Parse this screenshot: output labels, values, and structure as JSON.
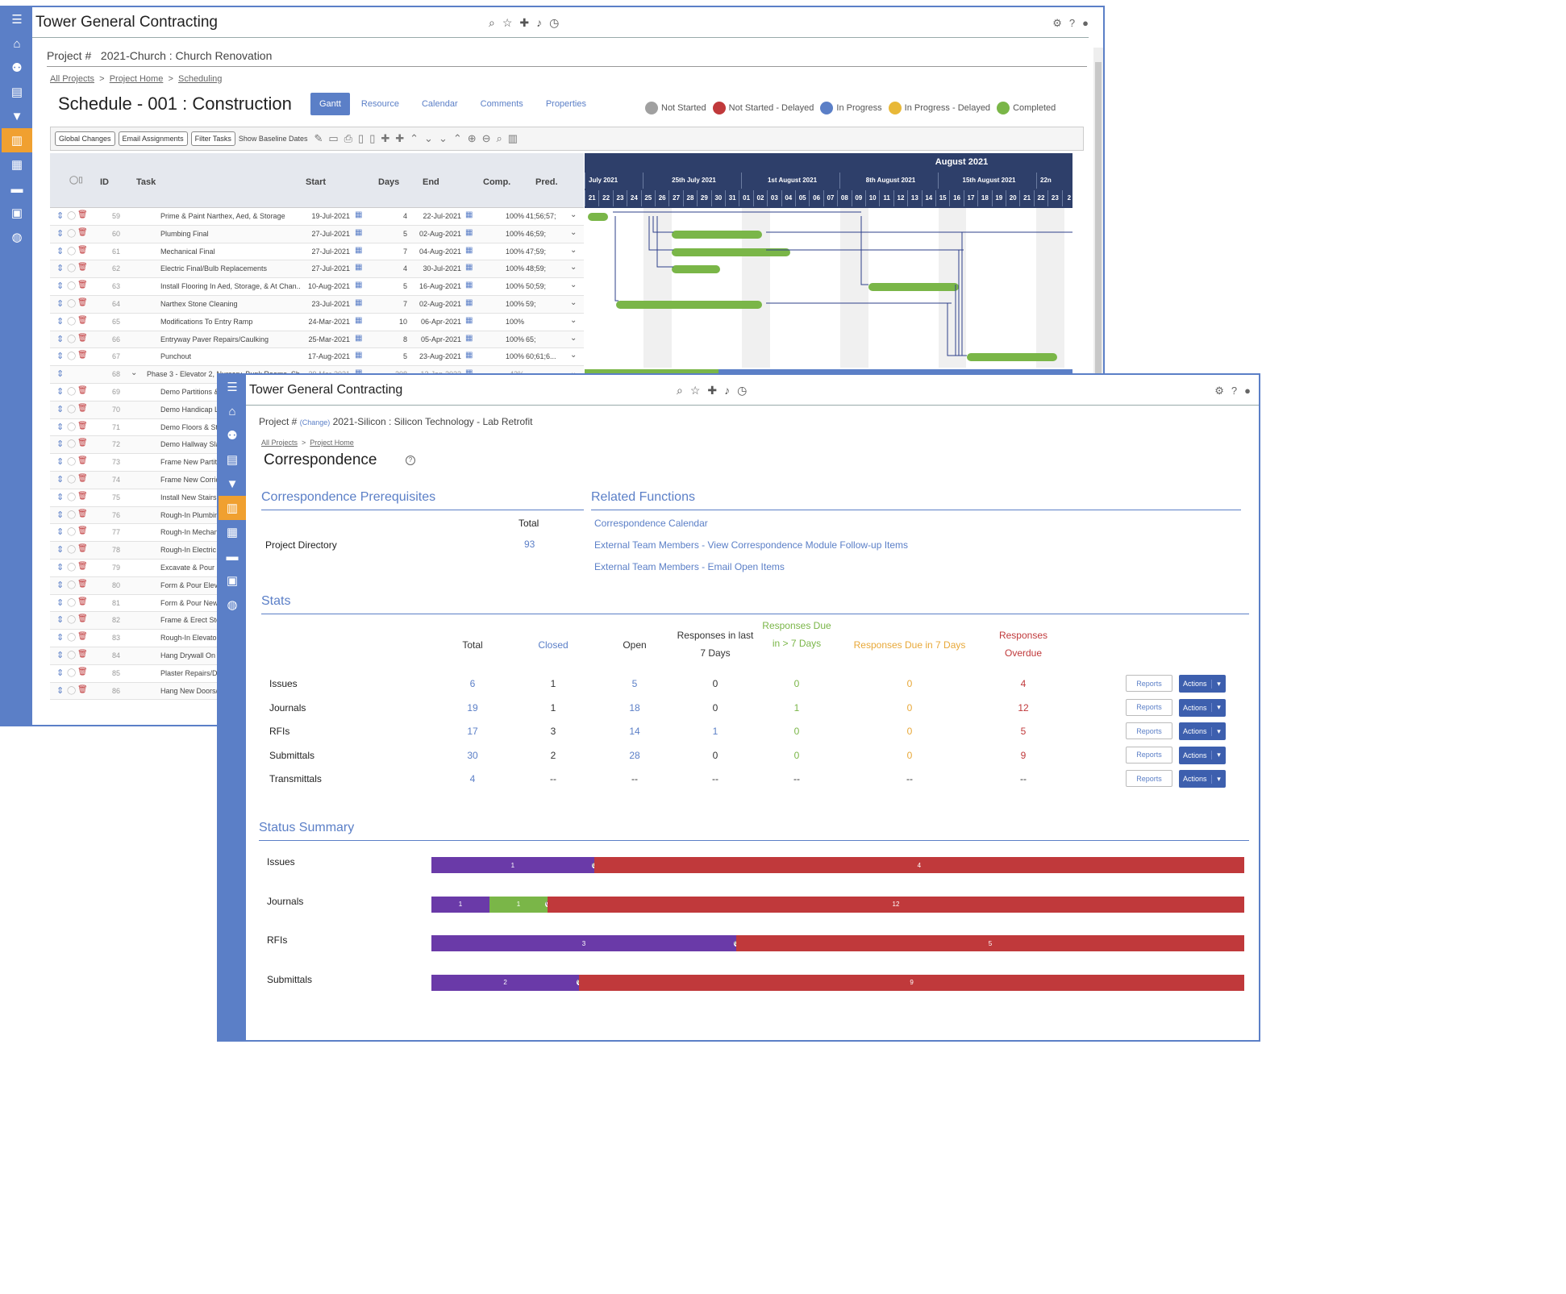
{
  "back": {
    "brand": "Tower General Contracting",
    "project_label": "Project #",
    "project": "2021-Church : Church Renovation",
    "crumbs": [
      "All Projects",
      "Project Home",
      "Scheduling"
    ],
    "title": "Schedule - 001 : Construction",
    "tabs": [
      "Gantt",
      "Resource",
      "Calendar",
      "Comments",
      "Properties"
    ],
    "legend": [
      {
        "label": "Not Started",
        "color": "#a0a0a0"
      },
      {
        "label": "Not Started - Delayed",
        "color": "#c0393b"
      },
      {
        "label": "In Progress",
        "color": "#5b7fc7"
      },
      {
        "label": "In Progress - Delayed",
        "color": "#e8b838"
      },
      {
        "label": "Completed",
        "color": "#7ab648"
      }
    ],
    "toolbar_buttons": [
      "Global Changes",
      "Email Assignments",
      "Filter Tasks"
    ],
    "toolbar_text": "Show Baseline Dates",
    "columns": [
      "ID",
      "Task",
      "Start",
      "Days",
      "End",
      "Comp.",
      "Pred."
    ],
    "month": "August 2021",
    "weeks": [
      "July 2021",
      "25th July 2021",
      "1st August 2021",
      "8th August 2021",
      "15th August 2021",
      "22n"
    ],
    "days": [
      "21",
      "22",
      "23",
      "24",
      "25",
      "26",
      "27",
      "28",
      "29",
      "30",
      "31",
      "01",
      "02",
      "03",
      "04",
      "05",
      "06",
      "07",
      "08",
      "09",
      "10",
      "11",
      "12",
      "13",
      "14",
      "15",
      "16",
      "17",
      "18",
      "19",
      "20",
      "21",
      "22",
      "23",
      "2"
    ],
    "rows": [
      {
        "id": "59",
        "task": "Prime & Paint Narthex, Aed, & Storage",
        "start": "19-Jul-2021",
        "days": "4",
        "end": "22-Jul-2021",
        "comp": "100%",
        "pred": "41;56;57;"
      },
      {
        "id": "60",
        "task": "Plumbing Final",
        "start": "27-Jul-2021",
        "days": "5",
        "end": "02-Aug-2021",
        "comp": "100%",
        "pred": "46;59;"
      },
      {
        "id": "61",
        "task": "Mechanical Final",
        "start": "27-Jul-2021",
        "days": "7",
        "end": "04-Aug-2021",
        "comp": "100%",
        "pred": "47;59;"
      },
      {
        "id": "62",
        "task": "Electric Final/Bulb Replacements",
        "start": "27-Jul-2021",
        "days": "4",
        "end": "30-Jul-2021",
        "comp": "100%",
        "pred": "48;59;"
      },
      {
        "id": "63",
        "task": "Install Flooring In Aed, Storage, & At Chan...",
        "start": "10-Aug-2021",
        "days": "5",
        "end": "16-Aug-2021",
        "comp": "100%",
        "pred": "50;59;"
      },
      {
        "id": "64",
        "task": "Narthex Stone Cleaning",
        "start": "23-Jul-2021",
        "days": "7",
        "end": "02-Aug-2021",
        "comp": "100%",
        "pred": "59;"
      },
      {
        "id": "65",
        "task": "Modifications To Entry Ramp",
        "start": "24-Mar-2021",
        "days": "10",
        "end": "06-Apr-2021",
        "comp": "100%",
        "pred": ""
      },
      {
        "id": "66",
        "task": "Entryway Paver Repairs/Caulking",
        "start": "25-Mar-2021",
        "days": "8",
        "end": "05-Apr-2021",
        "comp": "100%",
        "pred": "65;"
      },
      {
        "id": "67",
        "task": "Punchout",
        "start": "17-Aug-2021",
        "days": "5",
        "end": "23-Aug-2021",
        "comp": "100%",
        "pred": "60;61;6..."
      },
      {
        "id": "68",
        "task": "Phase 3 - Elevator 2, Nursery, Bunk Rooms, Sh...",
        "start": "29-Mar-2021",
        "days": "208",
        "end": "12-Jan-2022",
        "comp": "43%",
        "pred": ""
      },
      {
        "id": "69",
        "task": "Demo Partitions &"
      },
      {
        "id": "70",
        "task": "Demo Handicap Li"
      },
      {
        "id": "71",
        "task": "Demo Floors & Sta"
      },
      {
        "id": "72",
        "task": "Demo Hallway Sla"
      },
      {
        "id": "73",
        "task": "Frame New Partiti"
      },
      {
        "id": "74",
        "task": "Frame New Corrid"
      },
      {
        "id": "75",
        "task": "Install New Stairs"
      },
      {
        "id": "76",
        "task": "Rough-In Plumbin"
      },
      {
        "id": "77",
        "task": "Rough-In Mechani"
      },
      {
        "id": "78",
        "task": "Rough-In Electric"
      },
      {
        "id": "79",
        "task": "Excavate & Pour N"
      },
      {
        "id": "80",
        "task": "Form & Pour Eleva"
      },
      {
        "id": "81",
        "task": "Form & Pour New"
      },
      {
        "id": "82",
        "task": "Frame & Erect Ste"
      },
      {
        "id": "83",
        "task": "Rough-In Elevator"
      },
      {
        "id": "84",
        "task": "Hang Drywall On A"
      },
      {
        "id": "85",
        "task": "Plaster Repairs/Dr"
      },
      {
        "id": "86",
        "task": "Hang New Doors/F"
      }
    ]
  },
  "front": {
    "brand": "Tower General Contracting",
    "project_label": "Project #",
    "change": "(Change)",
    "project": "2021-Silicon : Silicon Technology - Lab Retrofit",
    "crumbs": [
      "All Projects",
      "Project Home"
    ],
    "title": "Correspondence",
    "prereq_title": "Correspondence Prerequisites",
    "prereq_total_label": "Total",
    "prereq_item": "Project Directory",
    "prereq_value": "93",
    "related_title": "Related Functions",
    "related_links": [
      "Correspondence Calendar",
      "External Team Members - View Correspondence Module Follow-up Items",
      "External Team Members - Email Open Items"
    ],
    "stats_title": "Stats",
    "stat_headers": [
      {
        "text": "Total",
        "cls": ""
      },
      {
        "text": "Closed",
        "cls": "blue"
      },
      {
        "text": "Open",
        "cls": ""
      },
      {
        "text": "Responses in last 7 Days",
        "cls": ""
      },
      {
        "text": "Responses Due in > 7 Days",
        "cls": "green"
      },
      {
        "text": "Responses Due in 7 Days",
        "cls": "orange"
      },
      {
        "text": "Responses Overdue",
        "cls": "red"
      }
    ],
    "stat_rows": [
      {
        "name": "Issues",
        "vals": [
          "6",
          "1",
          "5",
          "0",
          "0",
          "0",
          "4"
        ]
      },
      {
        "name": "Journals",
        "vals": [
          "19",
          "1",
          "18",
          "0",
          "1",
          "0",
          "12"
        ]
      },
      {
        "name": "RFIs",
        "vals": [
          "17",
          "3",
          "14",
          "1",
          "0",
          "0",
          "5"
        ]
      },
      {
        "name": "Submittals",
        "vals": [
          "30",
          "2",
          "28",
          "0",
          "0",
          "0",
          "9"
        ]
      },
      {
        "name": "Transmittals",
        "vals": [
          "4",
          "--",
          "--",
          "--",
          "--",
          "--",
          "--"
        ]
      }
    ],
    "reports_label": "Reports",
    "actions_label": "Actions",
    "status_title": "Status Summary",
    "status_rows": [
      {
        "name": "Issues",
        "segs": [
          {
            "v": 1,
            "c": "#6a3aa8"
          },
          {
            "v": 0,
            "c": "#7ab648"
          },
          {
            "v": 4,
            "c": "#c0393b"
          }
        ]
      },
      {
        "name": "Journals",
        "segs": [
          {
            "v": 1,
            "c": "#6a3aa8"
          },
          {
            "v": 1,
            "c": "#7ab648"
          },
          {
            "v": 0,
            "c": "#e8b838"
          },
          {
            "v": 12,
            "c": "#c0393b"
          }
        ]
      },
      {
        "name": "RFIs",
        "segs": [
          {
            "v": 3,
            "c": "#6a3aa8"
          },
          {
            "v": 0,
            "c": "#7ab648"
          },
          {
            "v": 5,
            "c": "#c0393b"
          }
        ]
      },
      {
        "name": "Submittals",
        "segs": [
          {
            "v": 2,
            "c": "#6a3aa8"
          },
          {
            "v": 0,
            "c": "#7ab648"
          },
          {
            "v": 9,
            "c": "#c0393b"
          }
        ]
      }
    ]
  }
}
